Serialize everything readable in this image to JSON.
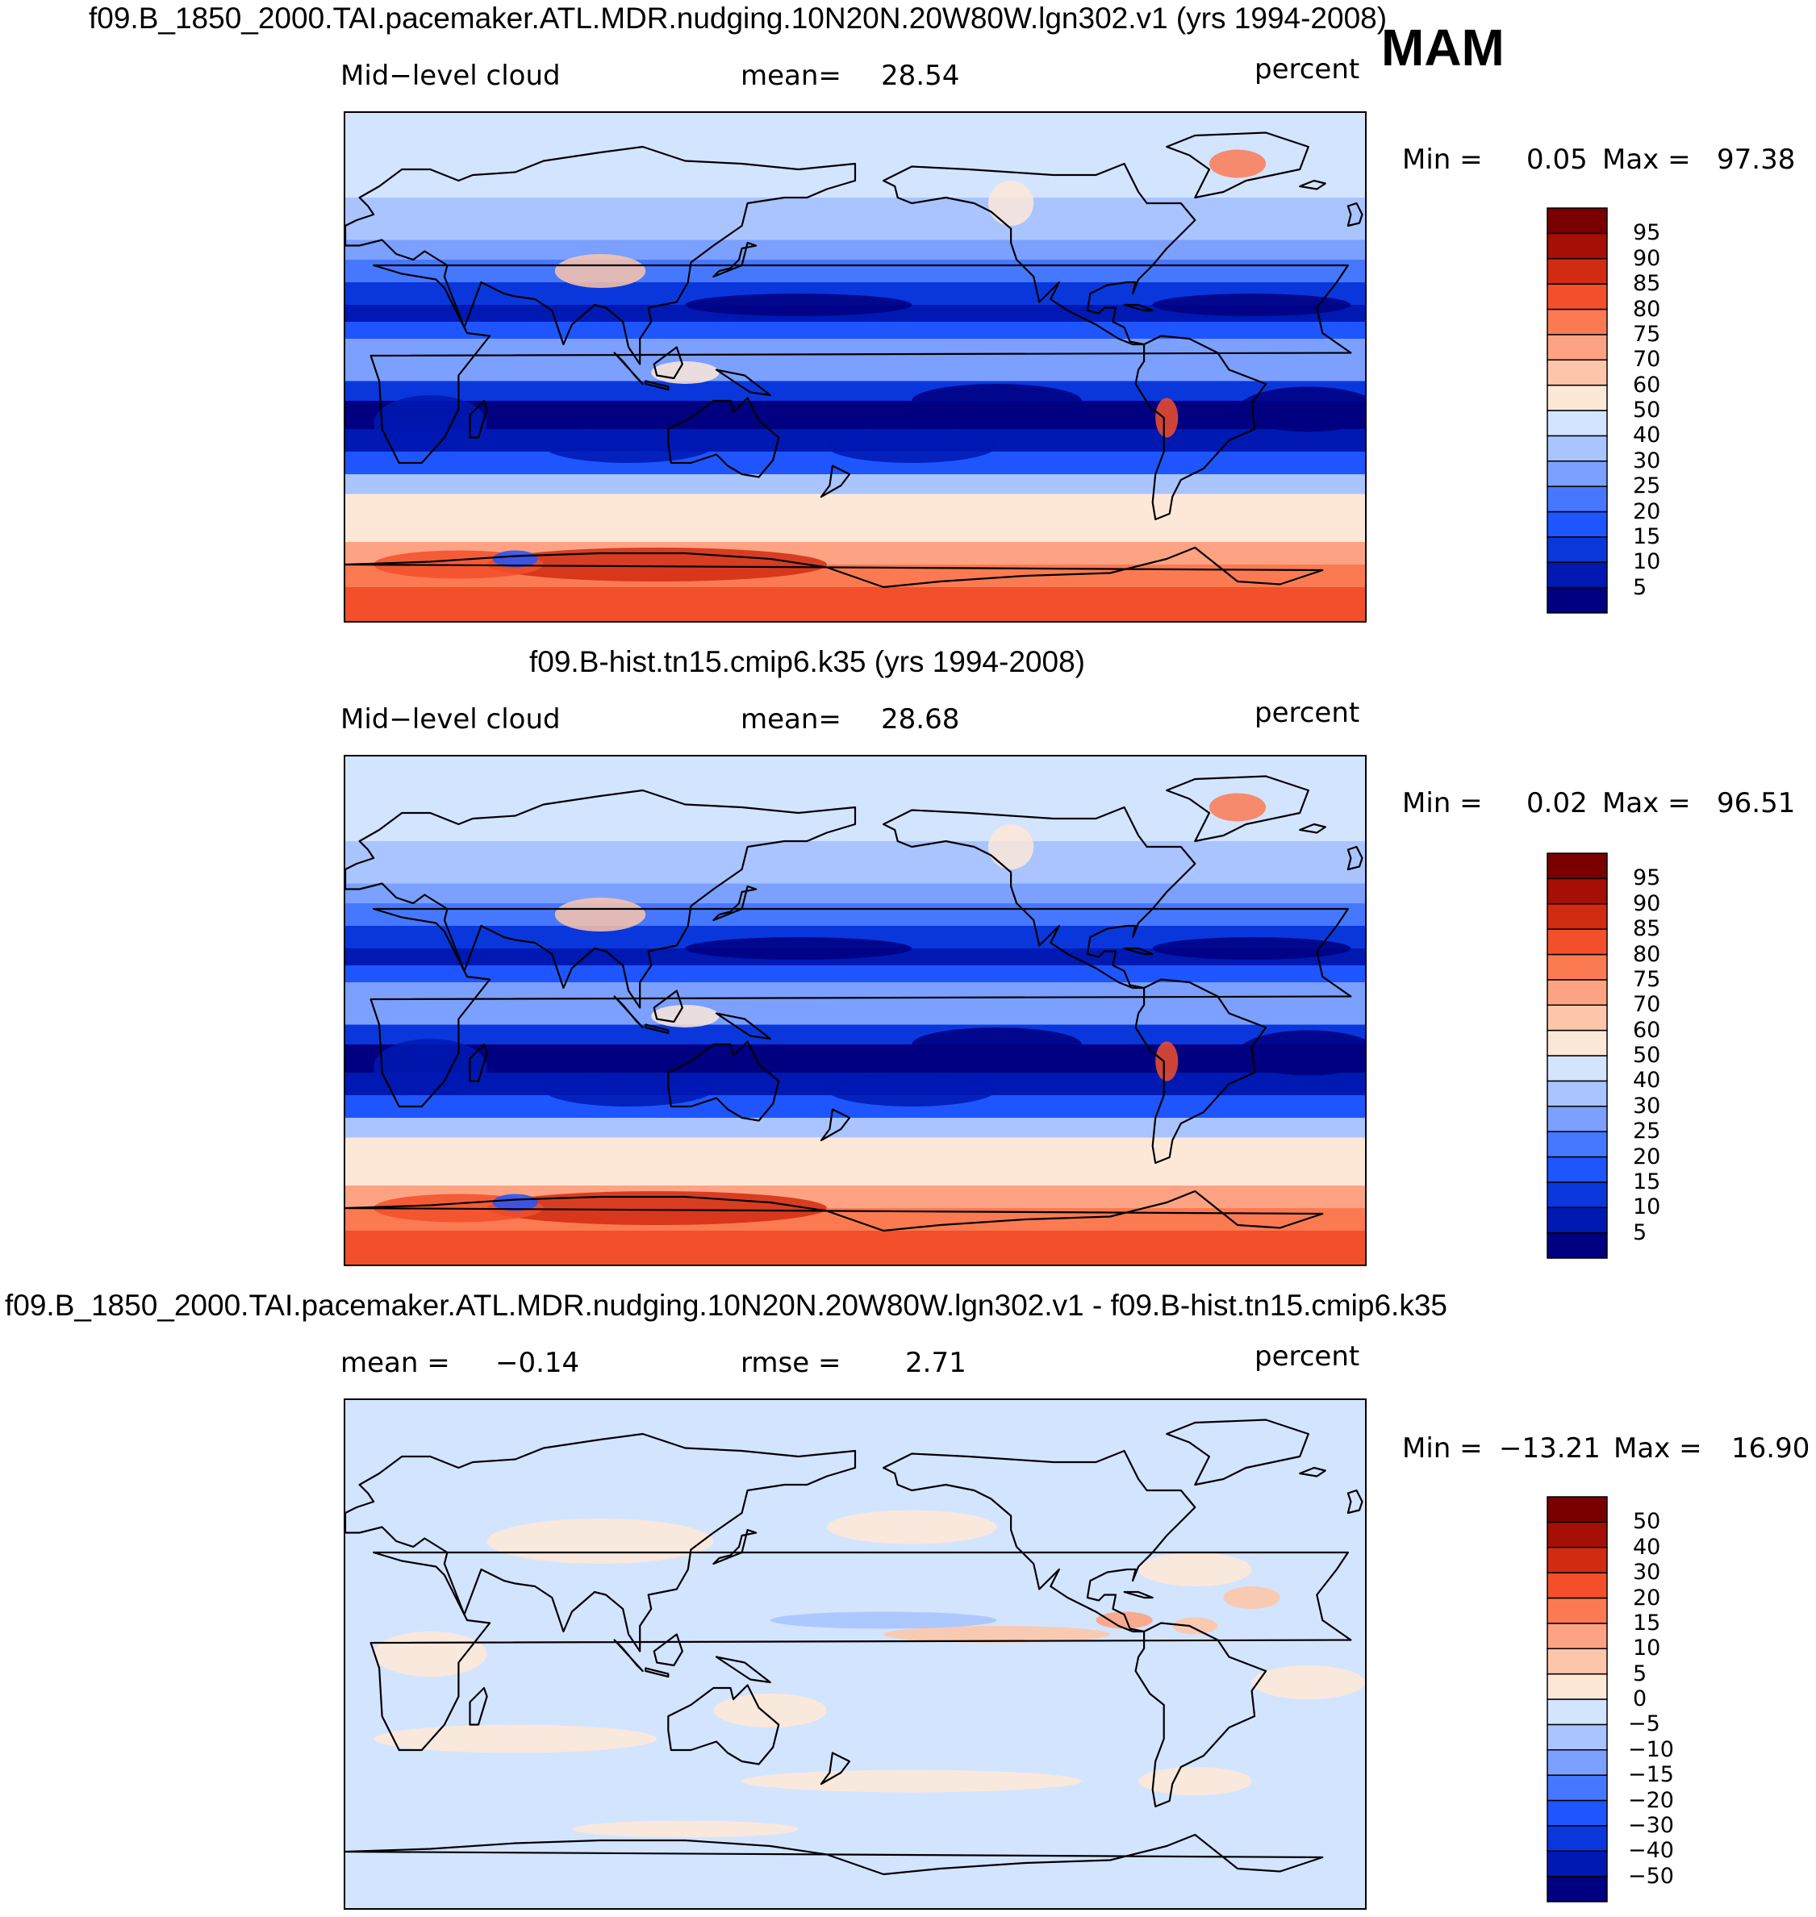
{
  "season": "MAM",
  "chart_data": [
    {
      "type": "heatmap",
      "title": "f09.B_1850_2000.TAI.pacemaker.ATL.MDR.nudging.10N20N.20W80W.lgn302.v1 (yrs 1994-2008)",
      "variable": "Mid−level cloud",
      "units": "percent",
      "mean_label": "mean=",
      "mean_value": "28.54",
      "min_label": "Min =",
      "min_value": "0.05",
      "max_label": "Max =",
      "max_value": "97.38",
      "levels": [
        "5",
        "10",
        "15",
        "20",
        "25",
        "30",
        "40",
        "50",
        "60",
        "70",
        "75",
        "80",
        "85",
        "90",
        "95"
      ],
      "colors": [
        "#000080",
        "#0019b3",
        "#0a37dc",
        "#1e55ff",
        "#4678ff",
        "#7ba0ff",
        "#a9c4ff",
        "#d3e4ff",
        "#fde8d8",
        "#fdc6aa",
        "#fda282",
        "#fb7a52",
        "#f24f2a",
        "#d12b12",
        "#a50f05",
        "#7a0000"
      ]
    },
    {
      "type": "heatmap",
      "title": "f09.B-hist.tn15.cmip6.k35 (yrs 1994-2008)",
      "variable": "Mid−level cloud",
      "units": "percent",
      "mean_label": "mean=",
      "mean_value": "28.68",
      "min_label": "Min =",
      "min_value": "0.02",
      "max_label": "Max =",
      "max_value": "96.51",
      "levels": [
        "5",
        "10",
        "15",
        "20",
        "25",
        "30",
        "40",
        "50",
        "60",
        "70",
        "75",
        "80",
        "85",
        "90",
        "95"
      ],
      "colors": [
        "#000080",
        "#0019b3",
        "#0a37dc",
        "#1e55ff",
        "#4678ff",
        "#7ba0ff",
        "#a9c4ff",
        "#d3e4ff",
        "#fde8d8",
        "#fdc6aa",
        "#fda282",
        "#fb7a52",
        "#f24f2a",
        "#d12b12",
        "#a50f05",
        "#7a0000"
      ]
    },
    {
      "type": "heatmap",
      "title": "f09.B_1850_2000.TAI.pacemaker.ATL.MDR.nudging.10N20N.20W80W.lgn302.v1 - f09.B-hist.tn15.cmip6.k35",
      "units": "percent",
      "mean_label": "mean =",
      "mean_value": "−0.14",
      "rmse_label": "rmse =",
      "rmse_value": "2.71",
      "min_label": "Min =",
      "min_value": "−13.21",
      "max_label": "Max =",
      "max_value": "16.90",
      "levels": [
        "−50",
        "−40",
        "−30",
        "−20",
        "−15",
        "−10",
        "−5",
        "0",
        "5",
        "10",
        "15",
        "20",
        "30",
        "40",
        "50"
      ],
      "colors": [
        "#000080",
        "#0019b3",
        "#0a37dc",
        "#1e55ff",
        "#4678ff",
        "#7ba0ff",
        "#a9c4ff",
        "#d3e4ff",
        "#fde8d8",
        "#fdc6aa",
        "#fda282",
        "#fb7a52",
        "#f24f2a",
        "#d12b12",
        "#a50f05",
        "#7a0000"
      ]
    }
  ]
}
